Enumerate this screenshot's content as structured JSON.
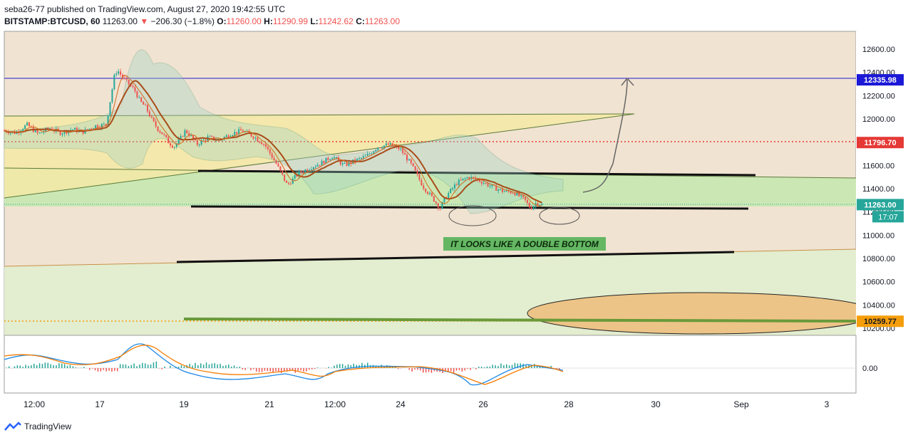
{
  "header": {
    "author_line": "seba26-77 published on TradingView.com, August 27, 2020 19:42:55 UTC",
    "symbol": "BITSTAMP:BTCUSD, 60",
    "last": "11263.00",
    "change": "−206.30 (−1.8%)",
    "o_label": "O:",
    "o_val": "11260.00",
    "h_label": "H:",
    "h_val": "11290.99",
    "l_label": "L:",
    "l_val": "11242.62",
    "c_label": "C:",
    "c_val": "11263.00"
  },
  "branding": {
    "name": "TradingView"
  },
  "colors": {
    "bg_beige": "#f1e3d1",
    "zone_green": "#cbe8b4",
    "zone_yellow": "#f5e9a6",
    "ellipse_orange": "#edc487",
    "up_candle": "#26a69a",
    "down_candle": "#ef5350",
    "ma": "#a94d1a",
    "price_tag": "#26a69a",
    "blue_level": "#1b18d6",
    "red_level": "#e53935",
    "orange_level": "#f59e0b"
  },
  "annotation": {
    "text": "IT LOOKS LIKE A DOUBLE BOTTOM"
  },
  "chart_data": {
    "type": "candlestick",
    "symbol": "BITSTAMP:BTCUSD",
    "interval": "60",
    "y_range": [
      10150,
      12700
    ],
    "y_ticks": [
      "12600.00",
      "12400.00",
      "12200.00",
      "12000.00",
      "11800.00",
      "11600.00",
      "11400.00",
      "11200.00",
      "11000.00",
      "10800.00",
      "10600.00",
      "10400.00",
      "10200.00"
    ],
    "x_ticks": [
      "12:00",
      "17",
      "19",
      "21",
      "12:00",
      "24",
      "26",
      "28",
      "30",
      "Sep",
      "3"
    ],
    "price_labels": [
      {
        "value": 12335.98,
        "text": "12335.98",
        "role": "blue-level"
      },
      {
        "value": 11796.7,
        "text": "11796.70",
        "role": "red-level"
      },
      {
        "value": 11263.0,
        "text": "11263.00",
        "role": "last-price"
      },
      {
        "value": 10259.77,
        "text": "10259.77",
        "role": "orange-level"
      }
    ],
    "countdown": "17:07",
    "close_path": [
      [
        0,
        11900
      ],
      [
        0.02,
        11880
      ],
      [
        0.04,
        11950
      ],
      [
        0.06,
        11870
      ],
      [
        0.08,
        11920
      ],
      [
        0.1,
        11880
      ],
      [
        0.12,
        11910
      ],
      [
        0.14,
        11890
      ],
      [
        0.16,
        11940
      ],
      [
        0.18,
        11950
      ],
      [
        0.195,
        12380
      ],
      [
        0.2,
        12420
      ],
      [
        0.21,
        12350
      ],
      [
        0.22,
        12300
      ],
      [
        0.23,
        12250
      ],
      [
        0.24,
        12150
      ],
      [
        0.25,
        12100
      ],
      [
        0.26,
        12000
      ],
      [
        0.27,
        11920
      ],
      [
        0.28,
        11870
      ],
      [
        0.29,
        11800
      ],
      [
        0.3,
        11760
      ],
      [
        0.31,
        11820
      ],
      [
        0.32,
        11900
      ],
      [
        0.33,
        11850
      ],
      [
        0.34,
        11780
      ],
      [
        0.36,
        11840
      ],
      [
        0.38,
        11820
      ],
      [
        0.4,
        11870
      ],
      [
        0.42,
        11900
      ],
      [
        0.44,
        11850
      ],
      [
        0.46,
        11780
      ],
      [
        0.48,
        11620
      ],
      [
        0.5,
        11430
      ],
      [
        0.52,
        11530
      ],
      [
        0.54,
        11580
      ],
      [
        0.56,
        11620
      ],
      [
        0.58,
        11680
      ],
      [
        0.6,
        11600
      ],
      [
        0.62,
        11640
      ],
      [
        0.64,
        11680
      ],
      [
        0.66,
        11760
      ],
      [
        0.68,
        11780
      ],
      [
        0.7,
        11740
      ],
      [
        0.72,
        11600
      ],
      [
        0.74,
        11420
      ],
      [
        0.76,
        11300
      ],
      [
        0.77,
        11230
      ],
      [
        0.78,
        11330
      ],
      [
        0.8,
        11450
      ],
      [
        0.82,
        11500
      ],
      [
        0.84,
        11470
      ],
      [
        0.86,
        11420
      ],
      [
        0.88,
        11380
      ],
      [
        0.9,
        11370
      ],
      [
        0.92,
        11300
      ],
      [
        0.93,
        11230
      ],
      [
        0.94,
        11280
      ],
      [
        0.95,
        11263
      ]
    ],
    "macd_zero_label": "0.00"
  }
}
